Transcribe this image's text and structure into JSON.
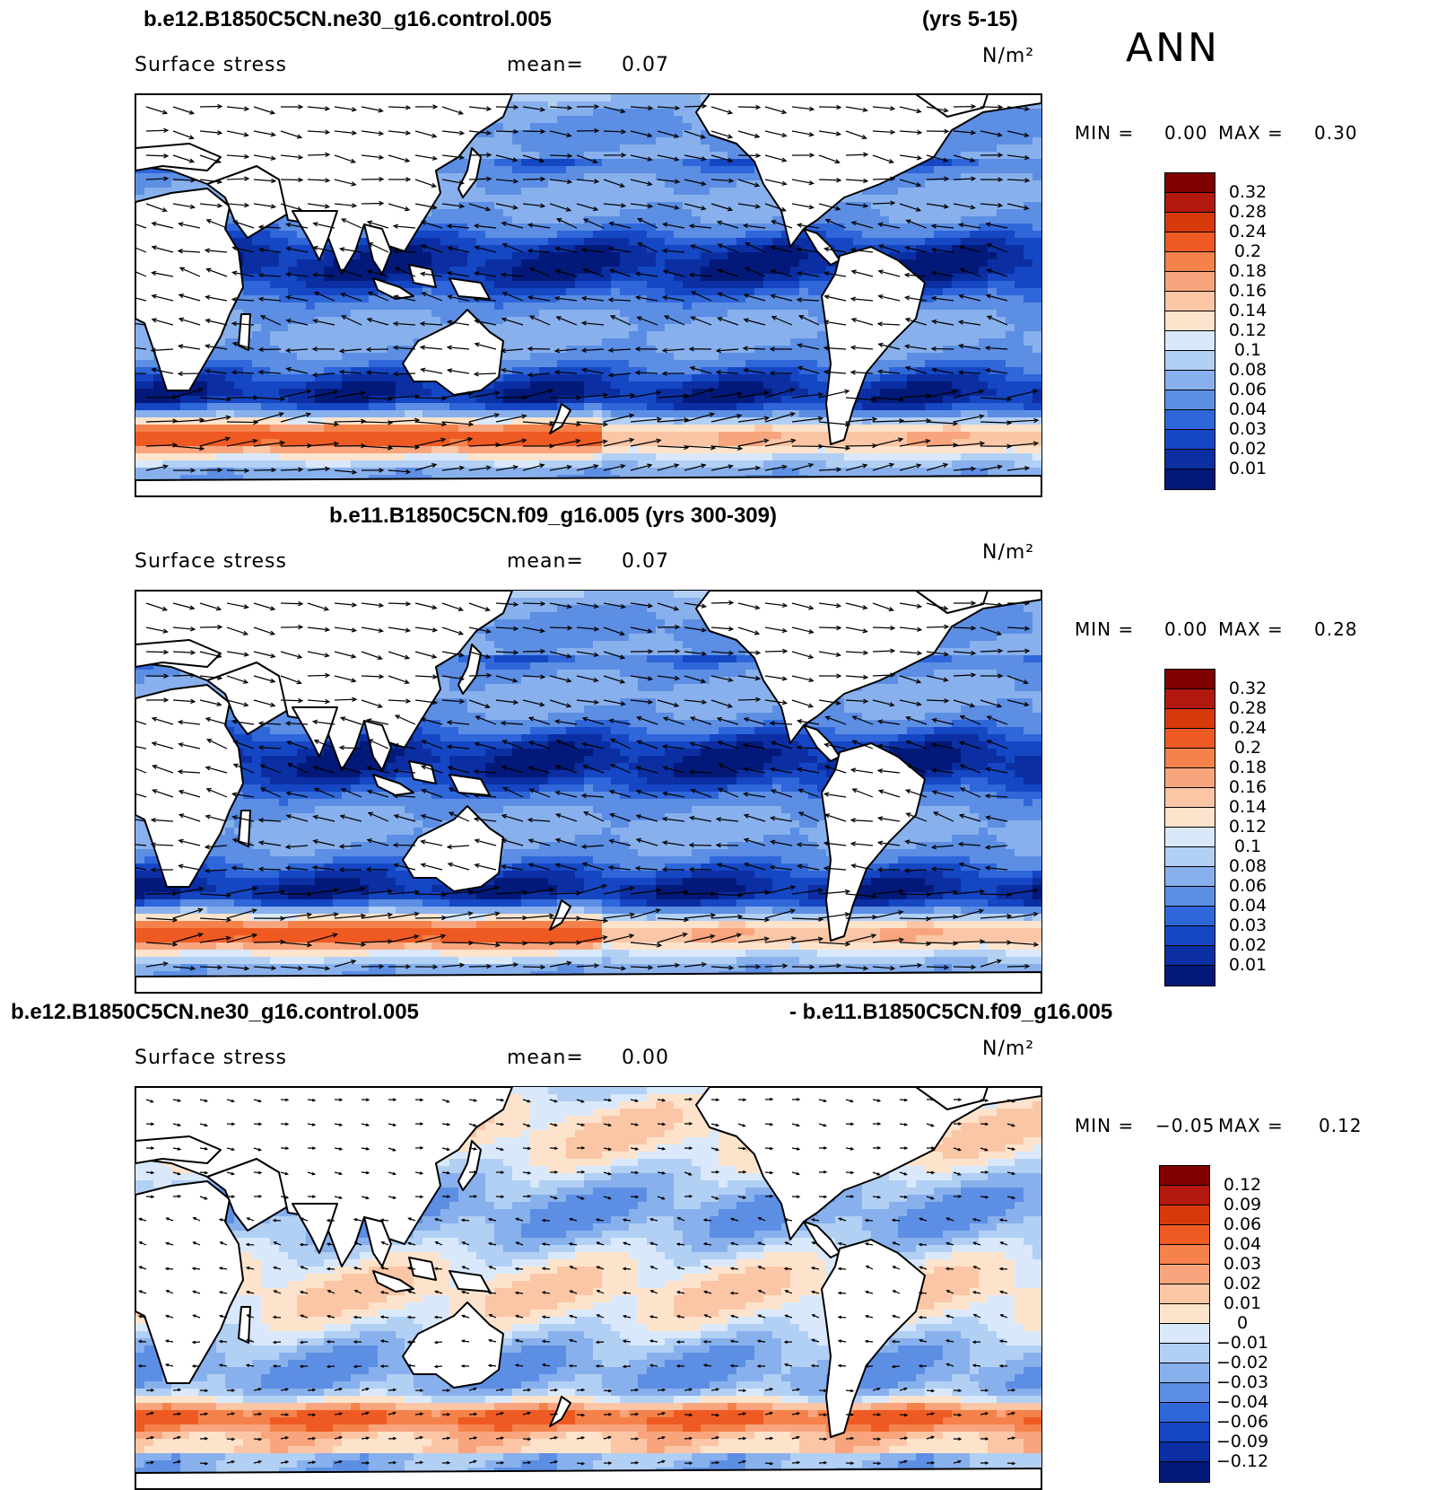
{
  "figure": {
    "season": "ANN"
  },
  "panels": [
    {
      "id": "top",
      "title_left": "b.e12.B1850C5CN.ne30_g16.control.005",
      "title_right": "(yrs 5-15)",
      "subtitle_left": "Surface stress",
      "mean_label": "mean=",
      "mean_value": "0.07",
      "units": "N/m²",
      "min_label": "MIN =",
      "min_value": "0.00",
      "max_label": "MAX =",
      "max_value": "0.30",
      "colorbar_labels": [
        "0.32",
        "0.28",
        "0.24",
        "0.2",
        "0.18",
        "0.16",
        "0.14",
        "0.12",
        "0.1",
        "0.08",
        "0.06",
        "0.04",
        "0.03",
        "0.02",
        "0.01"
      ],
      "colorbar_colors": [
        "#800000",
        "#b2180e",
        "#d8390b",
        "#ef5a23",
        "#f4824a",
        "#f8a57e",
        "#fbc6a6",
        "#fde3cc",
        "#d9e9fb",
        "#b2cff4",
        "#88b0ec",
        "#5c8ee4",
        "#2f67da",
        "#1547c4",
        "#0b2fa3",
        "#03197a"
      ]
    },
    {
      "id": "middle",
      "title_center": "b.e11.B1850C5CN.f09_g16.005 (yrs 300-309)",
      "subtitle_left": "Surface stress",
      "mean_label": "mean=",
      "mean_value": "0.07",
      "units": "N/m²",
      "min_label": "MIN =",
      "min_value": "0.00",
      "max_label": "MAX =",
      "max_value": "0.28",
      "colorbar_labels": [
        "0.32",
        "0.28",
        "0.24",
        "0.2",
        "0.18",
        "0.16",
        "0.14",
        "0.12",
        "0.1",
        "0.08",
        "0.06",
        "0.04",
        "0.03",
        "0.02",
        "0.01"
      ],
      "colorbar_colors": [
        "#800000",
        "#b2180e",
        "#d8390b",
        "#ef5a23",
        "#f4824a",
        "#f8a57e",
        "#fbc6a6",
        "#fde3cc",
        "#d9e9fb",
        "#b2cff4",
        "#88b0ec",
        "#5c8ee4",
        "#2f67da",
        "#1547c4",
        "#0b2fa3",
        "#03197a"
      ]
    },
    {
      "id": "bottom",
      "title_left": "b.e12.B1850C5CN.ne30_g16.control.005",
      "title_right": "- b.e11.B1850C5CN.f09_g16.005",
      "subtitle_left": "Surface stress",
      "mean_label": "mean=",
      "mean_value": "0.00",
      "units": "N/m²",
      "min_label": "MIN =",
      "min_value": "−0.05",
      "max_label": "MAX =",
      "max_value": "0.12",
      "colorbar_labels": [
        "0.12",
        "0.09",
        "0.06",
        "0.04",
        "0.03",
        "0.02",
        "0.01",
        "0",
        "−0.01",
        "−0.02",
        "−0.03",
        "−0.04",
        "−0.06",
        "−0.09",
        "−0.12"
      ],
      "colorbar_colors": [
        "#800000",
        "#b2180e",
        "#d8390b",
        "#ef5a23",
        "#f4824a",
        "#f8a57e",
        "#fbc6a6",
        "#fde3cc",
        "#d9e9fb",
        "#b2cff4",
        "#88b0ec",
        "#5c8ee4",
        "#2f67da",
        "#1547c4",
        "#0b2fa3",
        "#03197a"
      ]
    }
  ],
  "map_data": {
    "projection": "cylindrical equidistant, Pacific-centered",
    "field": "surface wind stress magnitude with stress vectors"
  }
}
